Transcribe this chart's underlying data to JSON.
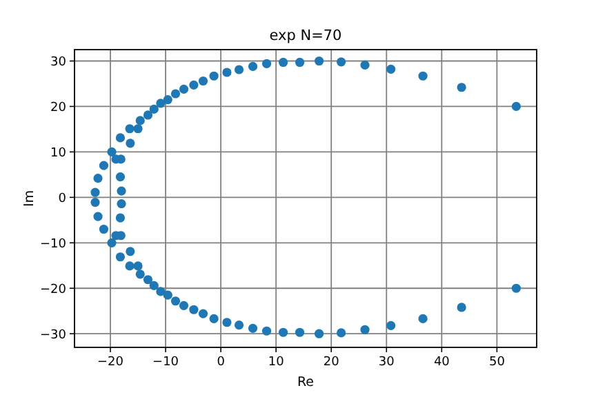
{
  "chart_data": {
    "type": "scatter",
    "title": "exp N=70",
    "xlabel": "Re",
    "ylabel": "Im",
    "xlim": [
      -26.5,
      57.2
    ],
    "ylim": [
      -33,
      32.5
    ],
    "xticks": [
      -20,
      -10,
      0,
      10,
      20,
      30,
      40,
      50
    ],
    "yticks": [
      -30,
      -20,
      -10,
      0,
      10,
      20,
      30
    ],
    "grid": true,
    "marker": "circle",
    "series": [
      {
        "color": "#1f77b4",
        "x": [
          53.5,
          43.6,
          36.6,
          30.8,
          26.1,
          21.8,
          17.8,
          14.3,
          11.3,
          8.3,
          5.8,
          3.3,
          1.1,
          -1.25,
          -3.2,
          -4.9,
          -6.7,
          -8.2,
          -9.6,
          -10.9,
          -12.1,
          -13.2,
          -14.6,
          -15,
          -16.5,
          -16.4,
          -18.2,
          -18.1,
          -19,
          -19.75,
          -21.2,
          -22.25,
          -22.75,
          -18.2,
          -18,
          53.5,
          43.6,
          36.6,
          30.8,
          26.1,
          21.8,
          17.8,
          14.3,
          11.3,
          8.3,
          5.8,
          3.3,
          1.1,
          -1.25,
          -3.2,
          -4.9,
          -6.7,
          -8.2,
          -9.6,
          -10.9,
          -12.1,
          -13.2,
          -14.6,
          -15,
          -16.5,
          -16.4,
          -18.2,
          -18.1,
          -19,
          -19.75,
          -21.2,
          -22.25,
          -22.75,
          -18.2,
          -18
        ],
        "values": [
          20,
          24.2,
          26.7,
          28.2,
          29.1,
          29.8,
          30,
          29.7,
          29.7,
          29.4,
          28.8,
          28.1,
          27.5,
          26.7,
          25.6,
          24.7,
          23.8,
          22.8,
          21.5,
          20.7,
          19.4,
          18.1,
          16.9,
          15.1,
          15.1,
          11.9,
          13.1,
          8.4,
          8.4,
          10,
          7,
          4.2,
          1.1,
          4.5,
          1.4,
          -20,
          -24.2,
          -26.7,
          -28.2,
          -29.1,
          -29.8,
          -30,
          -29.7,
          -29.7,
          -29.4,
          -28.8,
          -28.1,
          -27.5,
          -26.7,
          -25.6,
          -24.7,
          -23.8,
          -22.8,
          -21.5,
          -20.7,
          -19.4,
          -18.1,
          -16.9,
          -15.1,
          -15.1,
          -11.9,
          -13.1,
          -8.4,
          -8.4,
          -10,
          -7,
          -4.2,
          -1.1,
          -4.5,
          -1.4
        ]
      }
    ]
  }
}
